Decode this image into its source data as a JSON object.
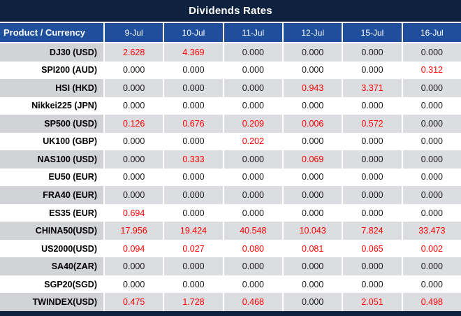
{
  "title": "Dividends Rates",
  "table": {
    "header": [
      "Product / Currency",
      "9-Jul",
      "10-Jul",
      "11-Jul",
      "12-Jul",
      "15-Jul",
      "16-Jul"
    ],
    "rows": [
      {
        "product": "DJ30 (USD)",
        "values": [
          "2.628",
          "4.369",
          "0.000",
          "0.000",
          "0.000",
          "0.000"
        ]
      },
      {
        "product": "SPI200 (AUD)",
        "values": [
          "0.000",
          "0.000",
          "0.000",
          "0.000",
          "0.000",
          "0.312"
        ]
      },
      {
        "product": "HSI (HKD)",
        "values": [
          "0.000",
          "0.000",
          "0.000",
          "0.943",
          "3.371",
          "0.000"
        ]
      },
      {
        "product": "Nikkei225 (JPN)",
        "values": [
          "0.000",
          "0.000",
          "0.000",
          "0.000",
          "0.000",
          "0.000"
        ]
      },
      {
        "product": "SP500 (USD)",
        "values": [
          "0.126",
          "0.676",
          "0.209",
          "0.006",
          "0.572",
          "0.000"
        ]
      },
      {
        "product": "UK100 (GBP)",
        "values": [
          "0.000",
          "0.000",
          "0.202",
          "0.000",
          "0.000",
          "0.000"
        ]
      },
      {
        "product": "NAS100 (USD)",
        "values": [
          "0.000",
          "0.333",
          "0.000",
          "0.069",
          "0.000",
          "0.000"
        ]
      },
      {
        "product": "EU50 (EUR)",
        "values": [
          "0.000",
          "0.000",
          "0.000",
          "0.000",
          "0.000",
          "0.000"
        ]
      },
      {
        "product": "FRA40 (EUR)",
        "values": [
          "0.000",
          "0.000",
          "0.000",
          "0.000",
          "0.000",
          "0.000"
        ]
      },
      {
        "product": "ES35 (EUR)",
        "values": [
          "0.694",
          "0.000",
          "0.000",
          "0.000",
          "0.000",
          "0.000"
        ]
      },
      {
        "product": "CHINA50(USD)",
        "values": [
          "17.956",
          "19.424",
          "40.548",
          "10.043",
          "7.824",
          "33.473"
        ]
      },
      {
        "product": "US2000(USD)",
        "values": [
          "0.094",
          "0.027",
          "0.080",
          "0.081",
          "0.065",
          "0.002"
        ]
      },
      {
        "product": "SA40(ZAR)",
        "values": [
          "0.000",
          "0.000",
          "0.000",
          "0.000",
          "0.000",
          "0.000"
        ]
      },
      {
        "product": "SGP20(SGD)",
        "values": [
          "0.000",
          "0.000",
          "0.000",
          "0.000",
          "0.000",
          "0.000"
        ]
      },
      {
        "product": "TWINDEX(USD)",
        "values": [
          "0.475",
          "1.728",
          "0.468",
          "0.000",
          "2.051",
          "0.498"
        ]
      }
    ]
  },
  "colors": {
    "title_bg": "#0e2240",
    "header_bg": "#1e4e9c",
    "stripe_value_bg": "#dcdde0",
    "stripe_product_bg": "#d2d3d7",
    "nonzero_value": "#ff0000",
    "zero_value": "#1a1a1e",
    "footer_bg": "#0e2240"
  },
  "chart_data": {
    "type": "table",
    "title": "Dividends Rates",
    "columns": [
      "Product / Currency",
      "9-Jul",
      "10-Jul",
      "11-Jul",
      "12-Jul",
      "15-Jul",
      "16-Jul"
    ],
    "rows": [
      [
        "DJ30 (USD)",
        2.628,
        4.369,
        0.0,
        0.0,
        0.0,
        0.0
      ],
      [
        "SPI200 (AUD)",
        0.0,
        0.0,
        0.0,
        0.0,
        0.0,
        0.312
      ],
      [
        "HSI (HKD)",
        0.0,
        0.0,
        0.0,
        0.943,
        3.371,
        0.0
      ],
      [
        "Nikkei225 (JPN)",
        0.0,
        0.0,
        0.0,
        0.0,
        0.0,
        0.0
      ],
      [
        "SP500 (USD)",
        0.126,
        0.676,
        0.209,
        0.006,
        0.572,
        0.0
      ],
      [
        "UK100 (GBP)",
        0.0,
        0.0,
        0.202,
        0.0,
        0.0,
        0.0
      ],
      [
        "NAS100 (USD)",
        0.0,
        0.333,
        0.0,
        0.069,
        0.0,
        0.0
      ],
      [
        "EU50 (EUR)",
        0.0,
        0.0,
        0.0,
        0.0,
        0.0,
        0.0
      ],
      [
        "FRA40 (EUR)",
        0.0,
        0.0,
        0.0,
        0.0,
        0.0,
        0.0
      ],
      [
        "ES35 (EUR)",
        0.694,
        0.0,
        0.0,
        0.0,
        0.0,
        0.0
      ],
      [
        "CHINA50(USD)",
        17.956,
        19.424,
        40.548,
        10.043,
        7.824,
        33.473
      ],
      [
        "US2000(USD)",
        0.094,
        0.027,
        0.08,
        0.081,
        0.065,
        0.002
      ],
      [
        "SA40(ZAR)",
        0.0,
        0.0,
        0.0,
        0.0,
        0.0,
        0.0
      ],
      [
        "SGP20(SGD)",
        0.0,
        0.0,
        0.0,
        0.0,
        0.0,
        0.0
      ],
      [
        "TWINDEX(USD)",
        0.475,
        1.728,
        0.468,
        0.0,
        2.051,
        0.498
      ]
    ],
    "notes": "Non-zero values rendered in red; zeros in black. Rows alternate gray/white striping."
  }
}
